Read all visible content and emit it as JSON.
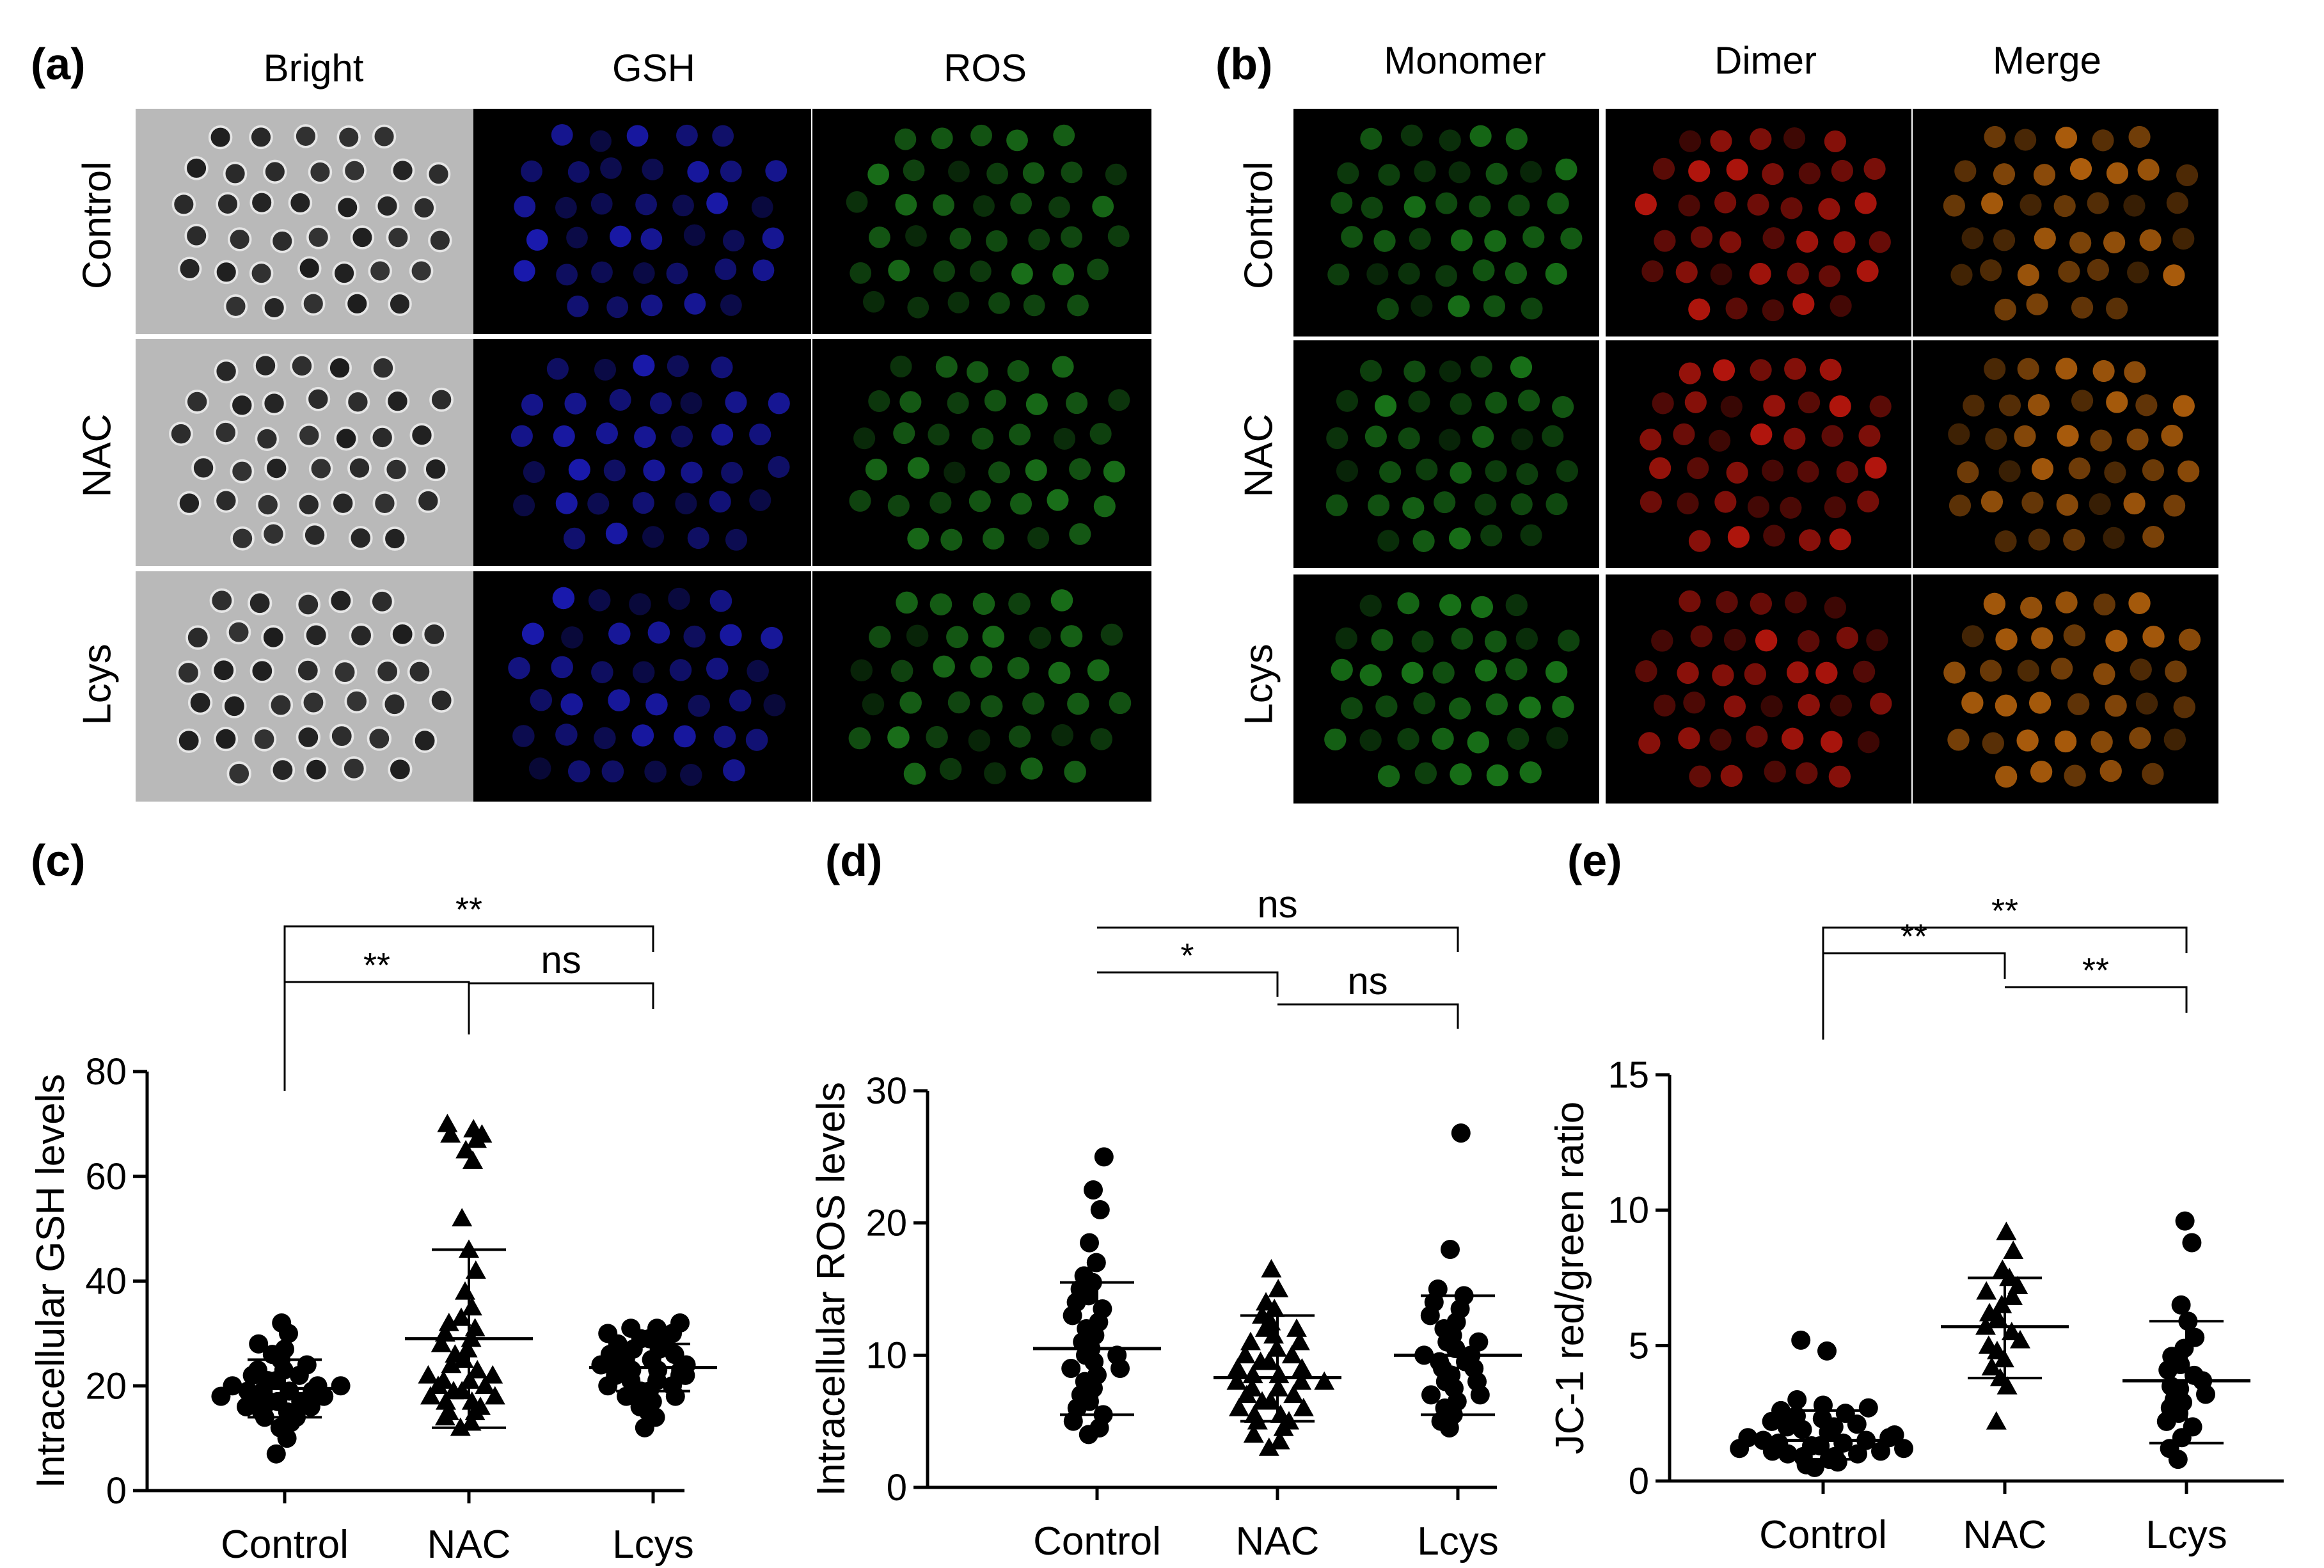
{
  "panel_a": {
    "letter": "(a)",
    "columns": [
      "Bright",
      "GSH",
      "ROS"
    ],
    "rows": [
      "Control",
      "NAC",
      "Lcys"
    ]
  },
  "panel_b": {
    "letter": "(b)",
    "columns": [
      "Monomer",
      "Dimer",
      "Merge"
    ],
    "rows": [
      "Control",
      "NAC",
      "Lcys"
    ]
  },
  "colors": {
    "bright_bg": "#b9b9b9",
    "oocyte_dark": "#1c1c1c",
    "gsh_blue": "#2020d8",
    "ros_green": "#1f8a1f",
    "monomer_green": "#1e8f1e",
    "dimer_red": "#e01b10",
    "merge_orange": "#d9750f"
  },
  "chart_data": [
    {
      "panel": "(c)",
      "type": "scatter",
      "ylabel": "Intracellular GSH levels",
      "categories": [
        "Control",
        "NAC",
        "Lcys"
      ],
      "yticks": [
        0,
        20,
        40,
        60,
        80
      ],
      "ylim": [
        0,
        80
      ],
      "markers": [
        "circle",
        "triangle",
        "circle"
      ],
      "series": [
        {
          "name": "Control",
          "mean": 19.5,
          "sd_low": 14,
          "sd_high": 25,
          "values": [
            7,
            10,
            12,
            13,
            14,
            14,
            15,
            15,
            16,
            16,
            17,
            17,
            17,
            18,
            18,
            18,
            19,
            19,
            19,
            19,
            20,
            20,
            20,
            21,
            21,
            22,
            22,
            23,
            23,
            24,
            25,
            26,
            27,
            28,
            30,
            32
          ]
        },
        {
          "name": "NAC",
          "mean": 29,
          "sd_low": 12,
          "sd_high": 46,
          "values": [
            12,
            13,
            14,
            15,
            15,
            16,
            17,
            17,
            18,
            18,
            19,
            19,
            20,
            20,
            21,
            21,
            22,
            22,
            23,
            24,
            25,
            26,
            27,
            28,
            29,
            30,
            31,
            32,
            33,
            35,
            38,
            42,
            46,
            52,
            63,
            65,
            67,
            68,
            68,
            69,
            70
          ]
        },
        {
          "name": "Lcys",
          "mean": 23.5,
          "sd_low": 19,
          "sd_high": 28,
          "values": [
            12,
            14,
            15,
            16,
            17,
            18,
            18,
            19,
            19,
            20,
            20,
            21,
            21,
            22,
            22,
            22,
            23,
            23,
            23,
            24,
            24,
            24,
            25,
            25,
            26,
            26,
            27,
            27,
            28,
            28,
            29,
            29,
            30,
            30,
            31,
            31,
            32
          ]
        }
      ],
      "comparisons": [
        {
          "from": "Control",
          "to": "Lcys",
          "label": "**"
        },
        {
          "from": "Control",
          "to": "NAC",
          "label": "**"
        },
        {
          "from": "NAC",
          "to": "Lcys",
          "label": "ns"
        }
      ]
    },
    {
      "panel": "(d)",
      "type": "scatter",
      "ylabel": "Intracellular ROS levels",
      "categories": [
        "Control",
        "NAC",
        "Lcys"
      ],
      "yticks": [
        0,
        10,
        20,
        30
      ],
      "ylim": [
        0,
        30
      ],
      "markers": [
        "circle",
        "triangle",
        "circle"
      ],
      "series": [
        {
          "name": "Control",
          "mean": 10.5,
          "sd_low": 5.5,
          "sd_high": 15.5,
          "values": [
            4,
            4.5,
            5,
            5.5,
            6,
            6.5,
            7,
            7.5,
            8,
            8.5,
            9,
            9,
            9.5,
            10,
            10,
            10.5,
            11,
            11.5,
            12,
            12.5,
            13,
            13.5,
            14,
            14.5,
            15,
            15.5,
            16,
            17,
            18.5,
            21,
            22.5,
            25
          ]
        },
        {
          "name": "NAC",
          "mean": 8.3,
          "sd_low": 5,
          "sd_high": 13,
          "values": [
            3,
            3.5,
            4,
            4.5,
            5,
            5,
            5.5,
            5.5,
            6,
            6,
            6.5,
            6.5,
            7,
            7,
            7.5,
            7.5,
            8,
            8,
            8,
            8.5,
            8.5,
            9,
            9,
            9.5,
            9.5,
            10,
            10,
            10.5,
            11,
            11,
            11.5,
            12,
            12,
            12.5,
            13,
            13.5,
            14,
            15,
            16.5
          ]
        },
        {
          "name": "Lcys",
          "mean": 10,
          "sd_low": 5.5,
          "sd_high": 14.5,
          "values": [
            4.5,
            5,
            5.5,
            6,
            6.5,
            7,
            7,
            7.5,
            8,
            8,
            8.5,
            9,
            9,
            9.5,
            9.5,
            10,
            10,
            10.5,
            11,
            11,
            11.5,
            12,
            12.5,
            13,
            13.5,
            14,
            14.5,
            15,
            18,
            26.8
          ]
        }
      ],
      "comparisons": [
        {
          "from": "Control",
          "to": "Lcys",
          "label": "ns"
        },
        {
          "from": "Control",
          "to": "NAC",
          "label": "*"
        },
        {
          "from": "NAC",
          "to": "Lcys",
          "label": "ns"
        }
      ]
    },
    {
      "panel": "(e)",
      "type": "scatter",
      "ylabel": "JC-1 red/green ratio",
      "categories": [
        "Control",
        "NAC",
        "Lcys"
      ],
      "yticks": [
        0,
        5,
        10,
        15
      ],
      "ylim": [
        0,
        15
      ],
      "markers": [
        "circle",
        "triangle",
        "circle"
      ],
      "series": [
        {
          "name": "Control",
          "mean": 1.5,
          "sd_low": 0.8,
          "sd_high": 2.6,
          "values": [
            0.5,
            0.6,
            0.7,
            0.8,
            0.9,
            0.9,
            1,
            1,
            1.1,
            1.1,
            1.2,
            1.2,
            1.3,
            1.3,
            1.4,
            1.4,
            1.5,
            1.5,
            1.6,
            1.6,
            1.7,
            1.8,
            1.9,
            2,
            2,
            2.1,
            2.2,
            2.3,
            2.4,
            2.5,
            2.6,
            2.7,
            2.8,
            3,
            4.8,
            5.2
          ]
        },
        {
          "name": "NAC",
          "mean": 5.7,
          "sd_low": 3.8,
          "sd_high": 7.5,
          "values": [
            2.2,
            3.5,
            3.8,
            4.2,
            4.5,
            4.8,
            5,
            5.2,
            5.5,
            5.7,
            6,
            6.2,
            6.5,
            6.8,
            7,
            7.2,
            7.5,
            7.8,
            8.5,
            9.2
          ]
        },
        {
          "name": "Lcys",
          "mean": 3.7,
          "sd_low": 1.4,
          "sd_high": 5.9,
          "values": [
            0.8,
            1.2,
            1.6,
            2,
            2.2,
            2.5,
            2.7,
            2.9,
            3,
            3.2,
            3.4,
            3.5,
            3.7,
            3.9,
            4.1,
            4.3,
            4.6,
            4.9,
            5.3,
            5.9,
            6.5,
            8.8,
            9.6
          ]
        }
      ],
      "comparisons": [
        {
          "from": "Control",
          "to": "Lcys",
          "label": "**"
        },
        {
          "from": "Control",
          "to": "NAC",
          "label": "**"
        },
        {
          "from": "NAC",
          "to": "Lcys",
          "label": "**"
        }
      ]
    }
  ]
}
